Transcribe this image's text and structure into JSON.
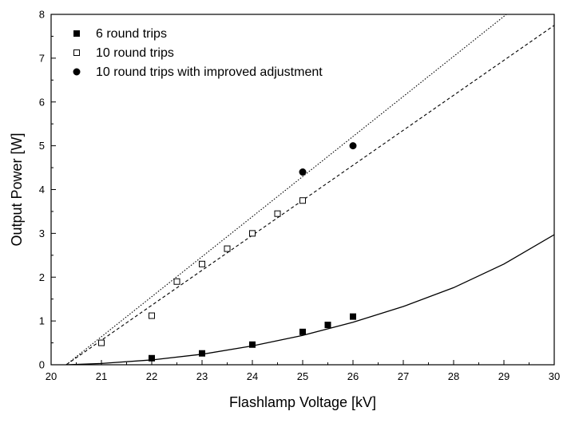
{
  "chart_data": {
    "type": "scatter",
    "title": "",
    "xlabel": "Flashlamp Voltage  [kV]",
    "ylabel": "Output Power [W]",
    "xlim": [
      20,
      30
    ],
    "ylim": [
      0,
      8
    ],
    "xticks": [
      "20",
      "21",
      "22",
      "23",
      "24",
      "25",
      "26",
      "27",
      "28",
      "29",
      "30"
    ],
    "yticks": [
      "0",
      "1",
      "2",
      "3",
      "4",
      "5",
      "6",
      "7",
      "8"
    ],
    "grid": false,
    "legend_position": "top-left",
    "series": [
      {
        "name": "6 round trips",
        "marker": "filled-square",
        "x": [
          22,
          23,
          24,
          25,
          25.5,
          26
        ],
        "y": [
          0.15,
          0.26,
          0.46,
          0.75,
          0.91,
          1.1
        ]
      },
      {
        "name": "10 round trips",
        "marker": "open-square",
        "x": [
          21,
          22,
          22.5,
          23,
          23.5,
          24,
          24.5,
          25
        ],
        "y": [
          0.5,
          1.12,
          1.9,
          2.3,
          2.65,
          3.0,
          3.45,
          3.75
        ]
      },
      {
        "name": "10 round trips with improved adjustment",
        "marker": "filled-circle",
        "x": [
          25,
          26
        ],
        "y": [
          4.4,
          5.0
        ]
      }
    ],
    "fit_curves": [
      {
        "for": "6 round trips",
        "style": "solid",
        "x": [
          20.3,
          21,
          22,
          23,
          24,
          25,
          26,
          27,
          28,
          29,
          30
        ],
        "y": [
          0,
          0.03,
          0.11,
          0.24,
          0.43,
          0.67,
          0.97,
          1.33,
          1.76,
          2.3,
          2.97
        ]
      },
      {
        "for": "10 round trips",
        "style": "dashed",
        "x": [
          20.3,
          30
        ],
        "y": [
          0,
          7.75
        ]
      },
      {
        "for": "10 round trips with improved adjustment",
        "style": "dotted",
        "x": [
          20.3,
          29.05
        ],
        "y": [
          0,
          8
        ]
      }
    ]
  }
}
